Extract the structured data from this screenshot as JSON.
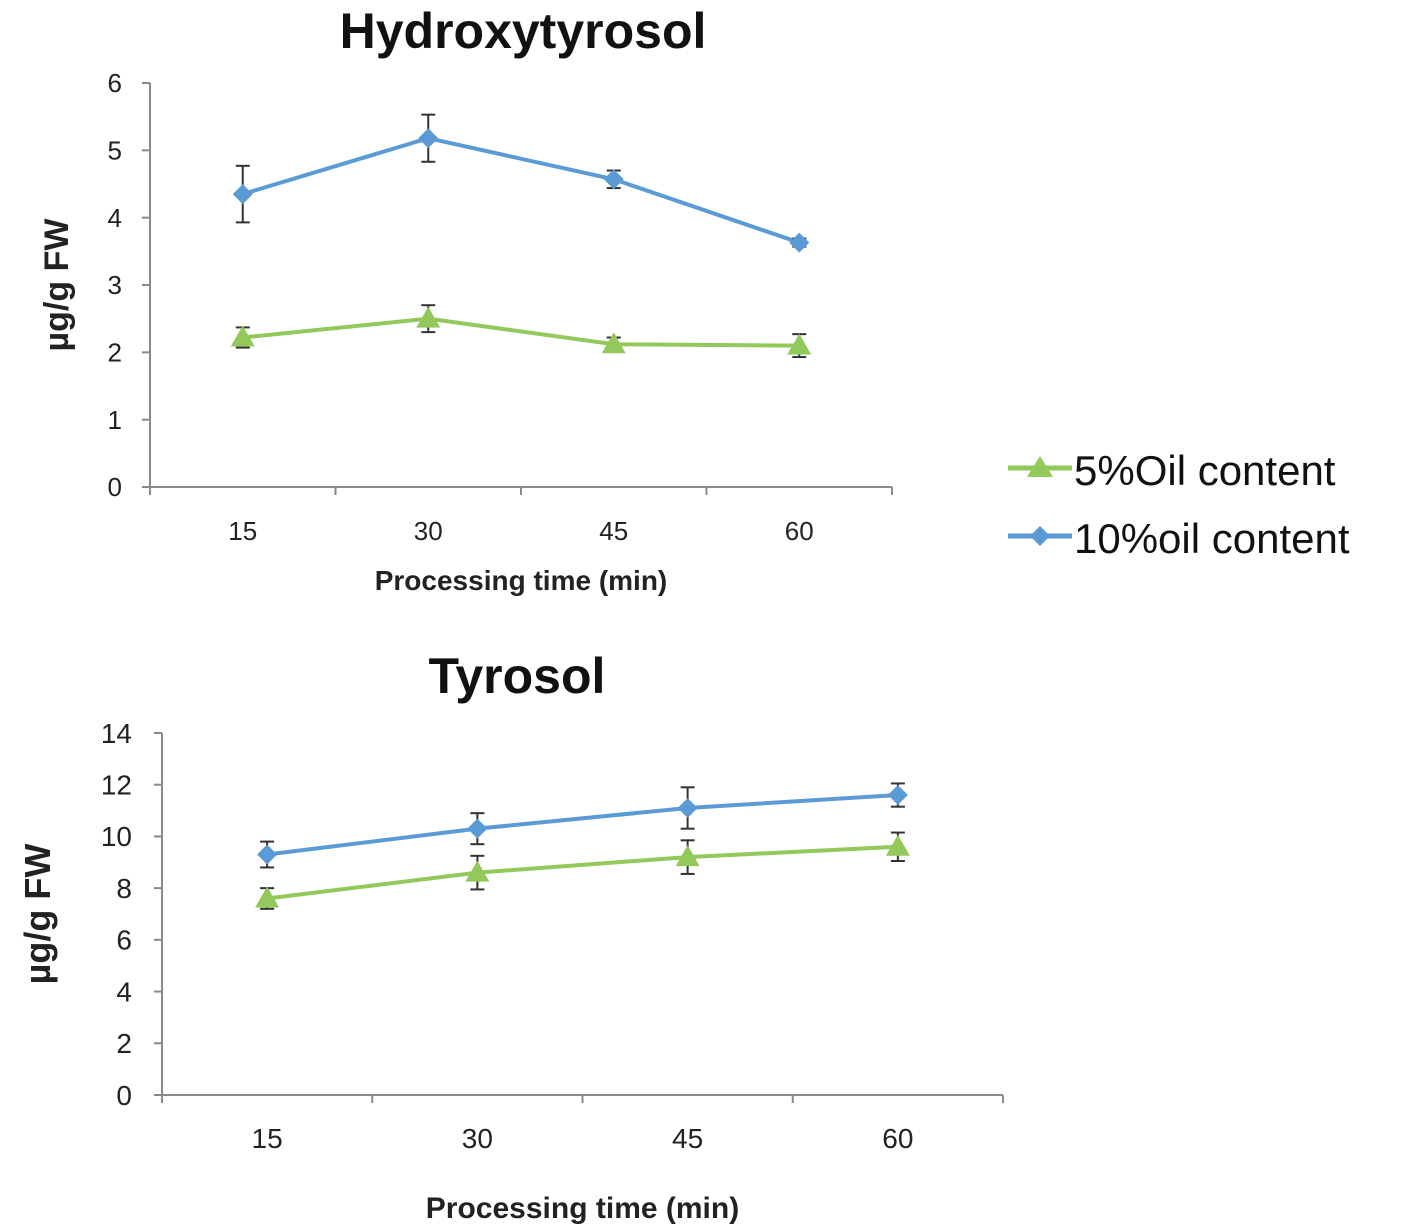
{
  "chart_data": [
    {
      "type": "line",
      "title": "Hydroxytyrosol",
      "xlabel": "Processing time (min)",
      "ylabel": "µg/g FW",
      "categories": [
        "15",
        "30",
        "45",
        "60"
      ],
      "ylim": [
        0,
        6
      ],
      "yticks": [
        "0",
        "1",
        "2",
        "3",
        "4",
        "5",
        "6"
      ],
      "grid": false,
      "legend": "right",
      "series": [
        {
          "name": "5%Oil content",
          "color": "#92c95a",
          "marker": "triangle",
          "values": [
            2.22,
            2.5,
            2.12,
            2.1
          ],
          "errors": [
            0.15,
            0.2,
            0.1,
            0.17
          ]
        },
        {
          "name": "10%oil content",
          "color": "#5b9bd5",
          "marker": "diamond",
          "values": [
            4.35,
            5.18,
            4.57,
            3.63
          ],
          "errors": [
            0.42,
            0.35,
            0.13,
            0.06
          ]
        }
      ]
    },
    {
      "type": "line",
      "title": "Tyrosol",
      "xlabel": "Processing time (min)",
      "ylabel": "µg/g FW",
      "categories": [
        "15",
        "30",
        "45",
        "60"
      ],
      "ylim": [
        0,
        14
      ],
      "yticks": [
        "0",
        "2",
        "4",
        "6",
        "8",
        "10",
        "12",
        "14"
      ],
      "grid": false,
      "series": [
        {
          "name": "5%Oil content",
          "color": "#92c95a",
          "marker": "triangle",
          "values": [
            7.6,
            8.6,
            9.2,
            9.6
          ],
          "errors": [
            0.4,
            0.65,
            0.65,
            0.55
          ]
        },
        {
          "name": "10%oil content",
          "color": "#5b9bd5",
          "marker": "diamond",
          "values": [
            9.3,
            10.3,
            11.1,
            11.6
          ],
          "errors": [
            0.5,
            0.6,
            0.8,
            0.45
          ]
        }
      ]
    }
  ],
  "legend": {
    "items": [
      {
        "label": "5%Oil content",
        "color": "#92c95a",
        "marker": "triangle"
      },
      {
        "label": "10%oil content",
        "color": "#5b9bd5",
        "marker": "diamond"
      }
    ]
  }
}
